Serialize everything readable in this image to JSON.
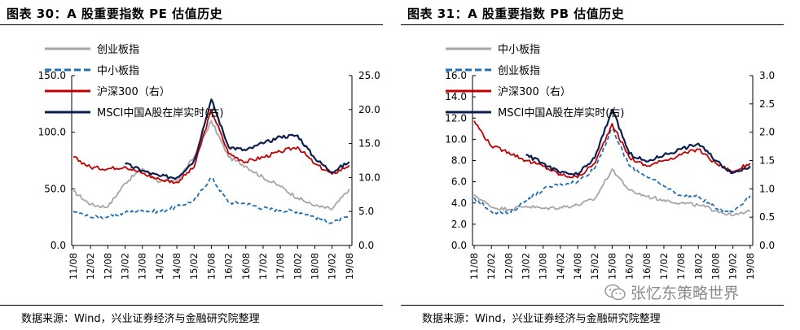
{
  "chart_data": [
    {
      "type": "line",
      "panel_title": "图表 30：A 股重要指数 PE 估值历史",
      "source": "数据来源：Wind，兴业证券经济与金融研究院整理",
      "categories": [
        "11/08",
        "12/02",
        "12/08",
        "13/02",
        "13/08",
        "14/02",
        "14/08",
        "15/02",
        "15/08",
        "16/02",
        "16/08",
        "17/02",
        "17/08",
        "18/02",
        "18/08",
        "19/02",
        "19/08"
      ],
      "left_axis": {
        "ylim": [
          0,
          150
        ],
        "ticks": [
          "0.0",
          "50.0",
          "100.0",
          "150.0"
        ],
        "tick_values": [
          0,
          50,
          100,
          150
        ]
      },
      "right_axis": {
        "ylim": [
          0,
          25
        ],
        "ticks": [
          "0.0",
          "5.0",
          "10.0",
          "15.0",
          "20.0",
          "25.0"
        ],
        "tick_values": [
          0,
          5,
          10,
          15,
          20,
          25
        ]
      },
      "series": [
        {
          "name": "创业板指",
          "axis": "left",
          "color": "#a6a6a6",
          "dash": false,
          "values": [
            48,
            36,
            34,
            55,
            68,
            56,
            57,
            78,
            110,
            78,
            70,
            60,
            52,
            42,
            35,
            32,
            50
          ]
        },
        {
          "name": "中小板指",
          "axis": "left",
          "color": "#1f6fb2",
          "dash": true,
          "values": [
            30,
            25,
            25,
            29,
            31,
            30,
            34,
            40,
            60,
            38,
            37,
            33,
            31,
            30,
            25,
            20,
            25
          ]
        },
        {
          "name": "沪深300（右）",
          "axis": "right",
          "color": "#c00000",
          "dash": false,
          "values": [
            13,
            11.5,
            11.3,
            11.6,
            10.6,
            9.7,
            9.3,
            11.5,
            20,
            13.5,
            12.3,
            13.0,
            13.8,
            14.5,
            12.0,
            10.5,
            11.8
          ]
        },
        {
          "name": "MSCI中国A股在岸实时(右)",
          "axis": "right",
          "color": "#0d1f4f",
          "dash": false,
          "values": [
            null,
            null,
            null,
            12.0,
            11.0,
            10.2,
            10.0,
            12.5,
            21.5,
            14.5,
            14.0,
            15.0,
            16.0,
            16.2,
            12.8,
            10.8,
            12.3
          ]
        }
      ]
    },
    {
      "type": "line",
      "panel_title": "图表 31：A 股重要指数 PB 估值历史",
      "source": "数据来源：Wind，兴业证券经济与金融研究院整理",
      "categories": [
        "11/08",
        "12/02",
        "12/08",
        "13/02",
        "13/08",
        "14/02",
        "14/08",
        "15/02",
        "15/08",
        "16/02",
        "16/08",
        "17/02",
        "17/08",
        "18/02",
        "18/08",
        "19/02",
        "19/08"
      ],
      "left_axis": {
        "ylim": [
          0,
          16
        ],
        "ticks": [
          "0.0",
          "2.0",
          "4.0",
          "6.0",
          "8.0",
          "10.0",
          "12.0",
          "14.0",
          "16.0"
        ],
        "tick_values": [
          0,
          2,
          4,
          6,
          8,
          10,
          12,
          14,
          16
        ]
      },
      "right_axis": {
        "ylim": [
          0,
          3
        ],
        "ticks": [
          "0.0",
          "0.5",
          "1.0",
          "1.5",
          "2.0",
          "2.5",
          "3.0"
        ],
        "tick_values": [
          0,
          0.5,
          1.0,
          1.5,
          2.0,
          2.5,
          3.0
        ]
      },
      "series": [
        {
          "name": "中小板指",
          "axis": "left",
          "color": "#a6a6a6",
          "dash": false,
          "values": [
            4.8,
            3.6,
            3.4,
            3.7,
            3.5,
            3.6,
            3.8,
            4.4,
            7.2,
            5.2,
            4.6,
            4.3,
            4.0,
            3.8,
            3.3,
            2.8,
            3.2
          ]
        },
        {
          "name": "创业板指",
          "axis": "left",
          "color": "#1f6fb2",
          "dash": true,
          "values": [
            4.5,
            3.2,
            3.0,
            4.2,
            5.3,
            5.8,
            6.0,
            7.3,
            11.0,
            7.5,
            6.5,
            5.6,
            4.7,
            4.6,
            3.5,
            3.2,
            4.7
          ]
        },
        {
          "name": "沪深300（右）",
          "axis": "right",
          "color": "#c00000",
          "dash": false,
          "values": [
            2.2,
            1.75,
            1.65,
            1.5,
            1.4,
            1.25,
            1.2,
            1.45,
            2.15,
            1.55,
            1.4,
            1.5,
            1.6,
            1.7,
            1.45,
            1.3,
            1.45
          ]
        },
        {
          "name": "MSCI中国A股在岸实时(右)",
          "axis": "right",
          "color": "#0d1f4f",
          "dash": false,
          "values": [
            null,
            null,
            null,
            1.6,
            1.45,
            1.28,
            1.25,
            1.55,
            2.4,
            1.62,
            1.48,
            1.6,
            1.7,
            1.8,
            1.5,
            1.28,
            1.4
          ]
        }
      ]
    }
  ],
  "watermark": "张忆东策略世界"
}
